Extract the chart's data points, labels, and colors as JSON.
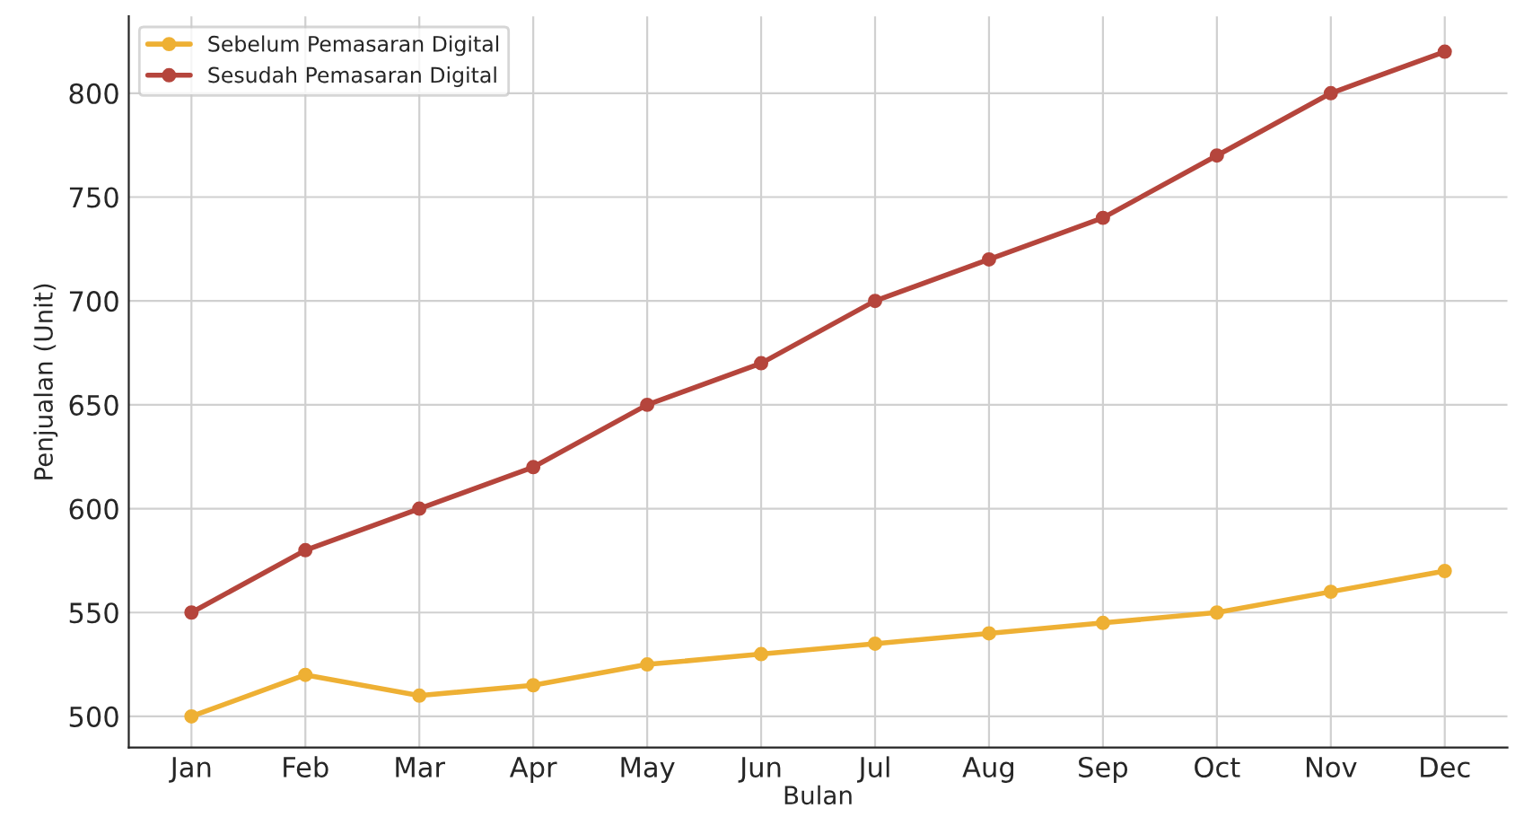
{
  "chart_data": {
    "type": "line",
    "xlabel": "Bulan",
    "ylabel": "Penjualan (Unit)",
    "categories": [
      "Jan",
      "Feb",
      "Mar",
      "Apr",
      "May",
      "Jun",
      "Jul",
      "Aug",
      "Sep",
      "Oct",
      "Nov",
      "Dec"
    ],
    "series": [
      {
        "name": "Sebelum Pemasaran Digital",
        "color": "#eeb034",
        "values": [
          500,
          520,
          510,
          515,
          525,
          530,
          535,
          540,
          545,
          550,
          560,
          570
        ]
      },
      {
        "name": "Sesudah Pemasaran Digital",
        "color": "#b5453c",
        "values": [
          550,
          580,
          600,
          620,
          650,
          670,
          700,
          720,
          740,
          770,
          800,
          820
        ]
      }
    ],
    "ylim": [
      485,
      837
    ],
    "yticks": [
      500,
      550,
      600,
      650,
      700,
      750,
      800
    ],
    "grid": true,
    "legend": "top left",
    "marker": "circle",
    "line_style": "solid"
  }
}
